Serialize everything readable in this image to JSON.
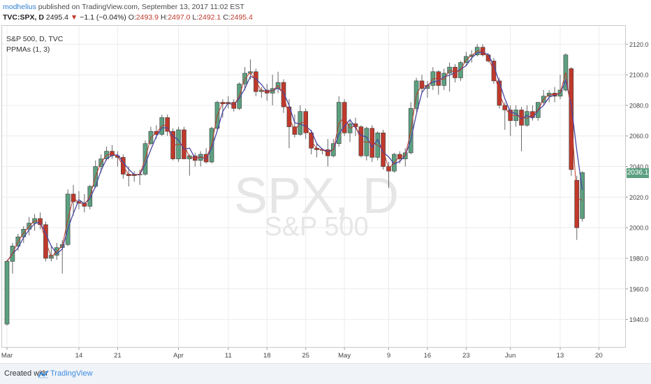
{
  "header": {
    "author": "modhelius",
    "published": "published on TradingView.com, September 13, 2017 11:02 EST",
    "symbol": "TVC:SPX, D",
    "last": "2495.4",
    "change": "−1.1 (−0.04%)",
    "open_label": "O:",
    "open": "2493.9",
    "high_label": "H:",
    "high": "2497.0",
    "low_label": "L:",
    "low": "2492.1",
    "close_label": "C:",
    "close": "2495.4",
    "colors": {
      "up": "#5ca080",
      "down": "#c0392b"
    }
  },
  "legend": {
    "title": "S&P 500, D, TVC",
    "indicator": "PPMAs (1, 3)"
  },
  "watermark": {
    "symbol": "SPX, D",
    "name": "S&P 500"
  },
  "price_tag": "2036.1",
  "footer": {
    "created": "Created with",
    "brand": "TradingView"
  },
  "chart_data": {
    "type": "candlestick",
    "y_ticks": [
      1940.0,
      1960.0,
      1980.0,
      2000.0,
      2020.0,
      2040.0,
      2060.0,
      2080.0,
      2100.0,
      2120.0
    ],
    "y_tick_labels": [
      "1940.0",
      "1960.0",
      "1980.0",
      "2000.0",
      "2020.0",
      "2040.0",
      "2060.0",
      "2080.0",
      "2100.0",
      "2120.0"
    ],
    "ylim": [
      1922,
      2132
    ],
    "x_labels": [
      "Mar",
      "14",
      "21",
      "Apr",
      "11",
      "18",
      "25",
      "May",
      "9",
      "16",
      "23",
      "Jun",
      "13",
      "20"
    ],
    "x_label_bars": [
      0,
      13,
      20,
      31,
      40,
      47,
      54,
      61,
      69,
      76,
      83,
      91,
      100,
      107
    ],
    "grid": true,
    "ma_colors": {
      "fast": "#c0392b",
      "slow": "#4a47a3"
    },
    "candles": [
      {
        "o": 1937,
        "h": 1979,
        "l": 1936,
        "c": 1978
      },
      {
        "o": 1978,
        "h": 1990,
        "l": 1970,
        "c": 1988
      },
      {
        "o": 1988,
        "h": 1996,
        "l": 1985,
        "c": 1994
      },
      {
        "o": 1994,
        "h": 2001,
        "l": 1990,
        "c": 1999
      },
      {
        "o": 1999,
        "h": 2007,
        "l": 1995,
        "c": 2003
      },
      {
        "o": 2003,
        "h": 2009,
        "l": 1998,
        "c": 2006
      },
      {
        "o": 2006,
        "h": 2010,
        "l": 1999,
        "c": 2002
      },
      {
        "o": 2002,
        "h": 2004,
        "l": 1978,
        "c": 1980
      },
      {
        "o": 1980,
        "h": 1988,
        "l": 1978,
        "c": 1982
      },
      {
        "o": 1982,
        "h": 1990,
        "l": 1979,
        "c": 1987
      },
      {
        "o": 1987,
        "h": 1992,
        "l": 1970,
        "c": 1989
      },
      {
        "o": 1989,
        "h": 2025,
        "l": 1988,
        "c": 2022
      },
      {
        "o": 2022,
        "h": 2028,
        "l": 2008,
        "c": 2017
      },
      {
        "o": 2017,
        "h": 2024,
        "l": 2012,
        "c": 2016
      },
      {
        "o": 2016,
        "h": 2022,
        "l": 2010,
        "c": 2014
      },
      {
        "o": 2014,
        "h": 2028,
        "l": 2012,
        "c": 2027
      },
      {
        "o": 2027,
        "h": 2044,
        "l": 2026,
        "c": 2040
      },
      {
        "o": 2040,
        "h": 2048,
        "l": 2036,
        "c": 2045
      },
      {
        "o": 2045,
        "h": 2053,
        "l": 2044,
        "c": 2050
      },
      {
        "o": 2050,
        "h": 2054,
        "l": 2045,
        "c": 2047
      },
      {
        "o": 2047,
        "h": 2050,
        "l": 2040,
        "c": 2046
      },
      {
        "o": 2046,
        "h": 2048,
        "l": 2032,
        "c": 2035
      },
      {
        "o": 2035,
        "h": 2040,
        "l": 2027,
        "c": 2034
      },
      {
        "o": 2034,
        "h": 2037,
        "l": 2030,
        "c": 2035
      },
      {
        "o": 2035,
        "h": 2038,
        "l": 2028,
        "c": 2035
      },
      {
        "o": 2035,
        "h": 2057,
        "l": 2034,
        "c": 2055
      },
      {
        "o": 2055,
        "h": 2066,
        "l": 2054,
        "c": 2063
      },
      {
        "o": 2063,
        "h": 2067,
        "l": 2058,
        "c": 2061
      },
      {
        "o": 2061,
        "h": 2074,
        "l": 2060,
        "c": 2072
      },
      {
        "o": 2072,
        "h": 2074,
        "l": 2060,
        "c": 2063
      },
      {
        "o": 2063,
        "h": 2065,
        "l": 2044,
        "c": 2045
      },
      {
        "o": 2045,
        "h": 2066,
        "l": 2043,
        "c": 2064
      },
      {
        "o": 2064,
        "h": 2066,
        "l": 2046,
        "c": 2045
      },
      {
        "o": 2045,
        "h": 2048,
        "l": 2034,
        "c": 2047
      },
      {
        "o": 2047,
        "h": 2049,
        "l": 2040,
        "c": 2044
      },
      {
        "o": 2044,
        "h": 2050,
        "l": 2040,
        "c": 2048
      },
      {
        "o": 2048,
        "h": 2052,
        "l": 2042,
        "c": 2043
      },
      {
        "o": 2043,
        "h": 2066,
        "l": 2042,
        "c": 2065
      },
      {
        "o": 2065,
        "h": 2083,
        "l": 2063,
        "c": 2082
      },
      {
        "o": 2082,
        "h": 2084,
        "l": 2072,
        "c": 2081
      },
      {
        "o": 2081,
        "h": 2086,
        "l": 2078,
        "c": 2082
      },
      {
        "o": 2082,
        "h": 2084,
        "l": 2076,
        "c": 2078
      },
      {
        "o": 2078,
        "h": 2095,
        "l": 2077,
        "c": 2094
      },
      {
        "o": 2094,
        "h": 2105,
        "l": 2090,
        "c": 2101
      },
      {
        "o": 2101,
        "h": 2110,
        "l": 2097,
        "c": 2102
      },
      {
        "o": 2102,
        "h": 2104,
        "l": 2086,
        "c": 2089
      },
      {
        "o": 2089,
        "h": 2092,
        "l": 2085,
        "c": 2090
      },
      {
        "o": 2090,
        "h": 2094,
        "l": 2083,
        "c": 2088
      },
      {
        "o": 2088,
        "h": 2100,
        "l": 2080,
        "c": 2091
      },
      {
        "o": 2091,
        "h": 2102,
        "l": 2088,
        "c": 2095
      },
      {
        "o": 2095,
        "h": 2097,
        "l": 2075,
        "c": 2079
      },
      {
        "o": 2079,
        "h": 2084,
        "l": 2052,
        "c": 2066
      },
      {
        "o": 2066,
        "h": 2074,
        "l": 2059,
        "c": 2061
      },
      {
        "o": 2061,
        "h": 2080,
        "l": 2060,
        "c": 2076
      },
      {
        "o": 2076,
        "h": 2078,
        "l": 2058,
        "c": 2062
      },
      {
        "o": 2062,
        "h": 2064,
        "l": 2048,
        "c": 2052
      },
      {
        "o": 2052,
        "h": 2055,
        "l": 2046,
        "c": 2051
      },
      {
        "o": 2051,
        "h": 2052,
        "l": 2048,
        "c": 2051
      },
      {
        "o": 2051,
        "h": 2058,
        "l": 2040,
        "c": 2047
      },
      {
        "o": 2047,
        "h": 2058,
        "l": 2046,
        "c": 2055
      },
      {
        "o": 2055,
        "h": 2086,
        "l": 2053,
        "c": 2082
      },
      {
        "o": 2082,
        "h": 2084,
        "l": 2060,
        "c": 2062
      },
      {
        "o": 2062,
        "h": 2070,
        "l": 2056,
        "c": 2068
      },
      {
        "o": 2068,
        "h": 2072,
        "l": 2060,
        "c": 2066
      },
      {
        "o": 2066,
        "h": 2067,
        "l": 2046,
        "c": 2047
      },
      {
        "o": 2047,
        "h": 2066,
        "l": 2044,
        "c": 2065
      },
      {
        "o": 2065,
        "h": 2067,
        "l": 2043,
        "c": 2046
      },
      {
        "o": 2046,
        "h": 2063,
        "l": 2044,
        "c": 2062
      },
      {
        "o": 2062,
        "h": 2064,
        "l": 2038,
        "c": 2040
      },
      {
        "o": 2040,
        "h": 2043,
        "l": 2026,
        "c": 2037
      },
      {
        "o": 2037,
        "h": 2049,
        "l": 2036,
        "c": 2048
      },
      {
        "o": 2048,
        "h": 2050,
        "l": 2042,
        "c": 2045
      },
      {
        "o": 2045,
        "h": 2052,
        "l": 2040,
        "c": 2049
      },
      {
        "o": 2049,
        "h": 2082,
        "l": 2048,
        "c": 2078
      },
      {
        "o": 2078,
        "h": 2098,
        "l": 2076,
        "c": 2096
      },
      {
        "o": 2096,
        "h": 2100,
        "l": 2088,
        "c": 2091
      },
      {
        "o": 2091,
        "h": 2096,
        "l": 2085,
        "c": 2093
      },
      {
        "o": 2093,
        "h": 2105,
        "l": 2090,
        "c": 2102
      },
      {
        "o": 2102,
        "h": 2103,
        "l": 2087,
        "c": 2093
      },
      {
        "o": 2093,
        "h": 2104,
        "l": 2090,
        "c": 2101
      },
      {
        "o": 2101,
        "h": 2108,
        "l": 2089,
        "c": 2105
      },
      {
        "o": 2105,
        "h": 2107,
        "l": 2095,
        "c": 2098
      },
      {
        "o": 2098,
        "h": 2109,
        "l": 2096,
        "c": 2108
      },
      {
        "o": 2108,
        "h": 2115,
        "l": 2106,
        "c": 2112
      },
      {
        "o": 2112,
        "h": 2116,
        "l": 2108,
        "c": 2113
      },
      {
        "o": 2113,
        "h": 2120,
        "l": 2112,
        "c": 2118
      },
      {
        "o": 2118,
        "h": 2120,
        "l": 2112,
        "c": 2113
      },
      {
        "o": 2113,
        "h": 2114,
        "l": 2108,
        "c": 2109
      },
      {
        "o": 2109,
        "h": 2111,
        "l": 2094,
        "c": 2096
      },
      {
        "o": 2096,
        "h": 2098,
        "l": 2078,
        "c": 2080
      },
      {
        "o": 2080,
        "h": 2082,
        "l": 2064,
        "c": 2077
      },
      {
        "o": 2077,
        "h": 2080,
        "l": 2060,
        "c": 2070
      },
      {
        "o": 2070,
        "h": 2080,
        "l": 2066,
        "c": 2077
      },
      {
        "o": 2077,
        "h": 2079,
        "l": 2050,
        "c": 2067
      },
      {
        "o": 2067,
        "h": 2080,
        "l": 2066,
        "c": 2076
      },
      {
        "o": 2076,
        "h": 2080,
        "l": 2070,
        "c": 2072
      },
      {
        "o": 2072,
        "h": 2082,
        "l": 2070,
        "c": 2082
      },
      {
        "o": 2082,
        "h": 2090,
        "l": 2080,
        "c": 2086
      },
      {
        "o": 2086,
        "h": 2090,
        "l": 2082,
        "c": 2088
      },
      {
        "o": 2088,
        "h": 2092,
        "l": 2082,
        "c": 2086
      },
      {
        "o": 2086,
        "h": 2100,
        "l": 2084,
        "c": 2090
      },
      {
        "o": 2090,
        "h": 2114,
        "l": 2089,
        "c": 2113
      },
      {
        "o": 2104,
        "h": 2105,
        "l": 2034,
        "c": 2038
      },
      {
        "o": 2031,
        "h": 2034,
        "l": 1992,
        "c": 2000
      },
      {
        "o": 2006,
        "h": 2037,
        "l": 2004,
        "c": 2036
      }
    ]
  }
}
